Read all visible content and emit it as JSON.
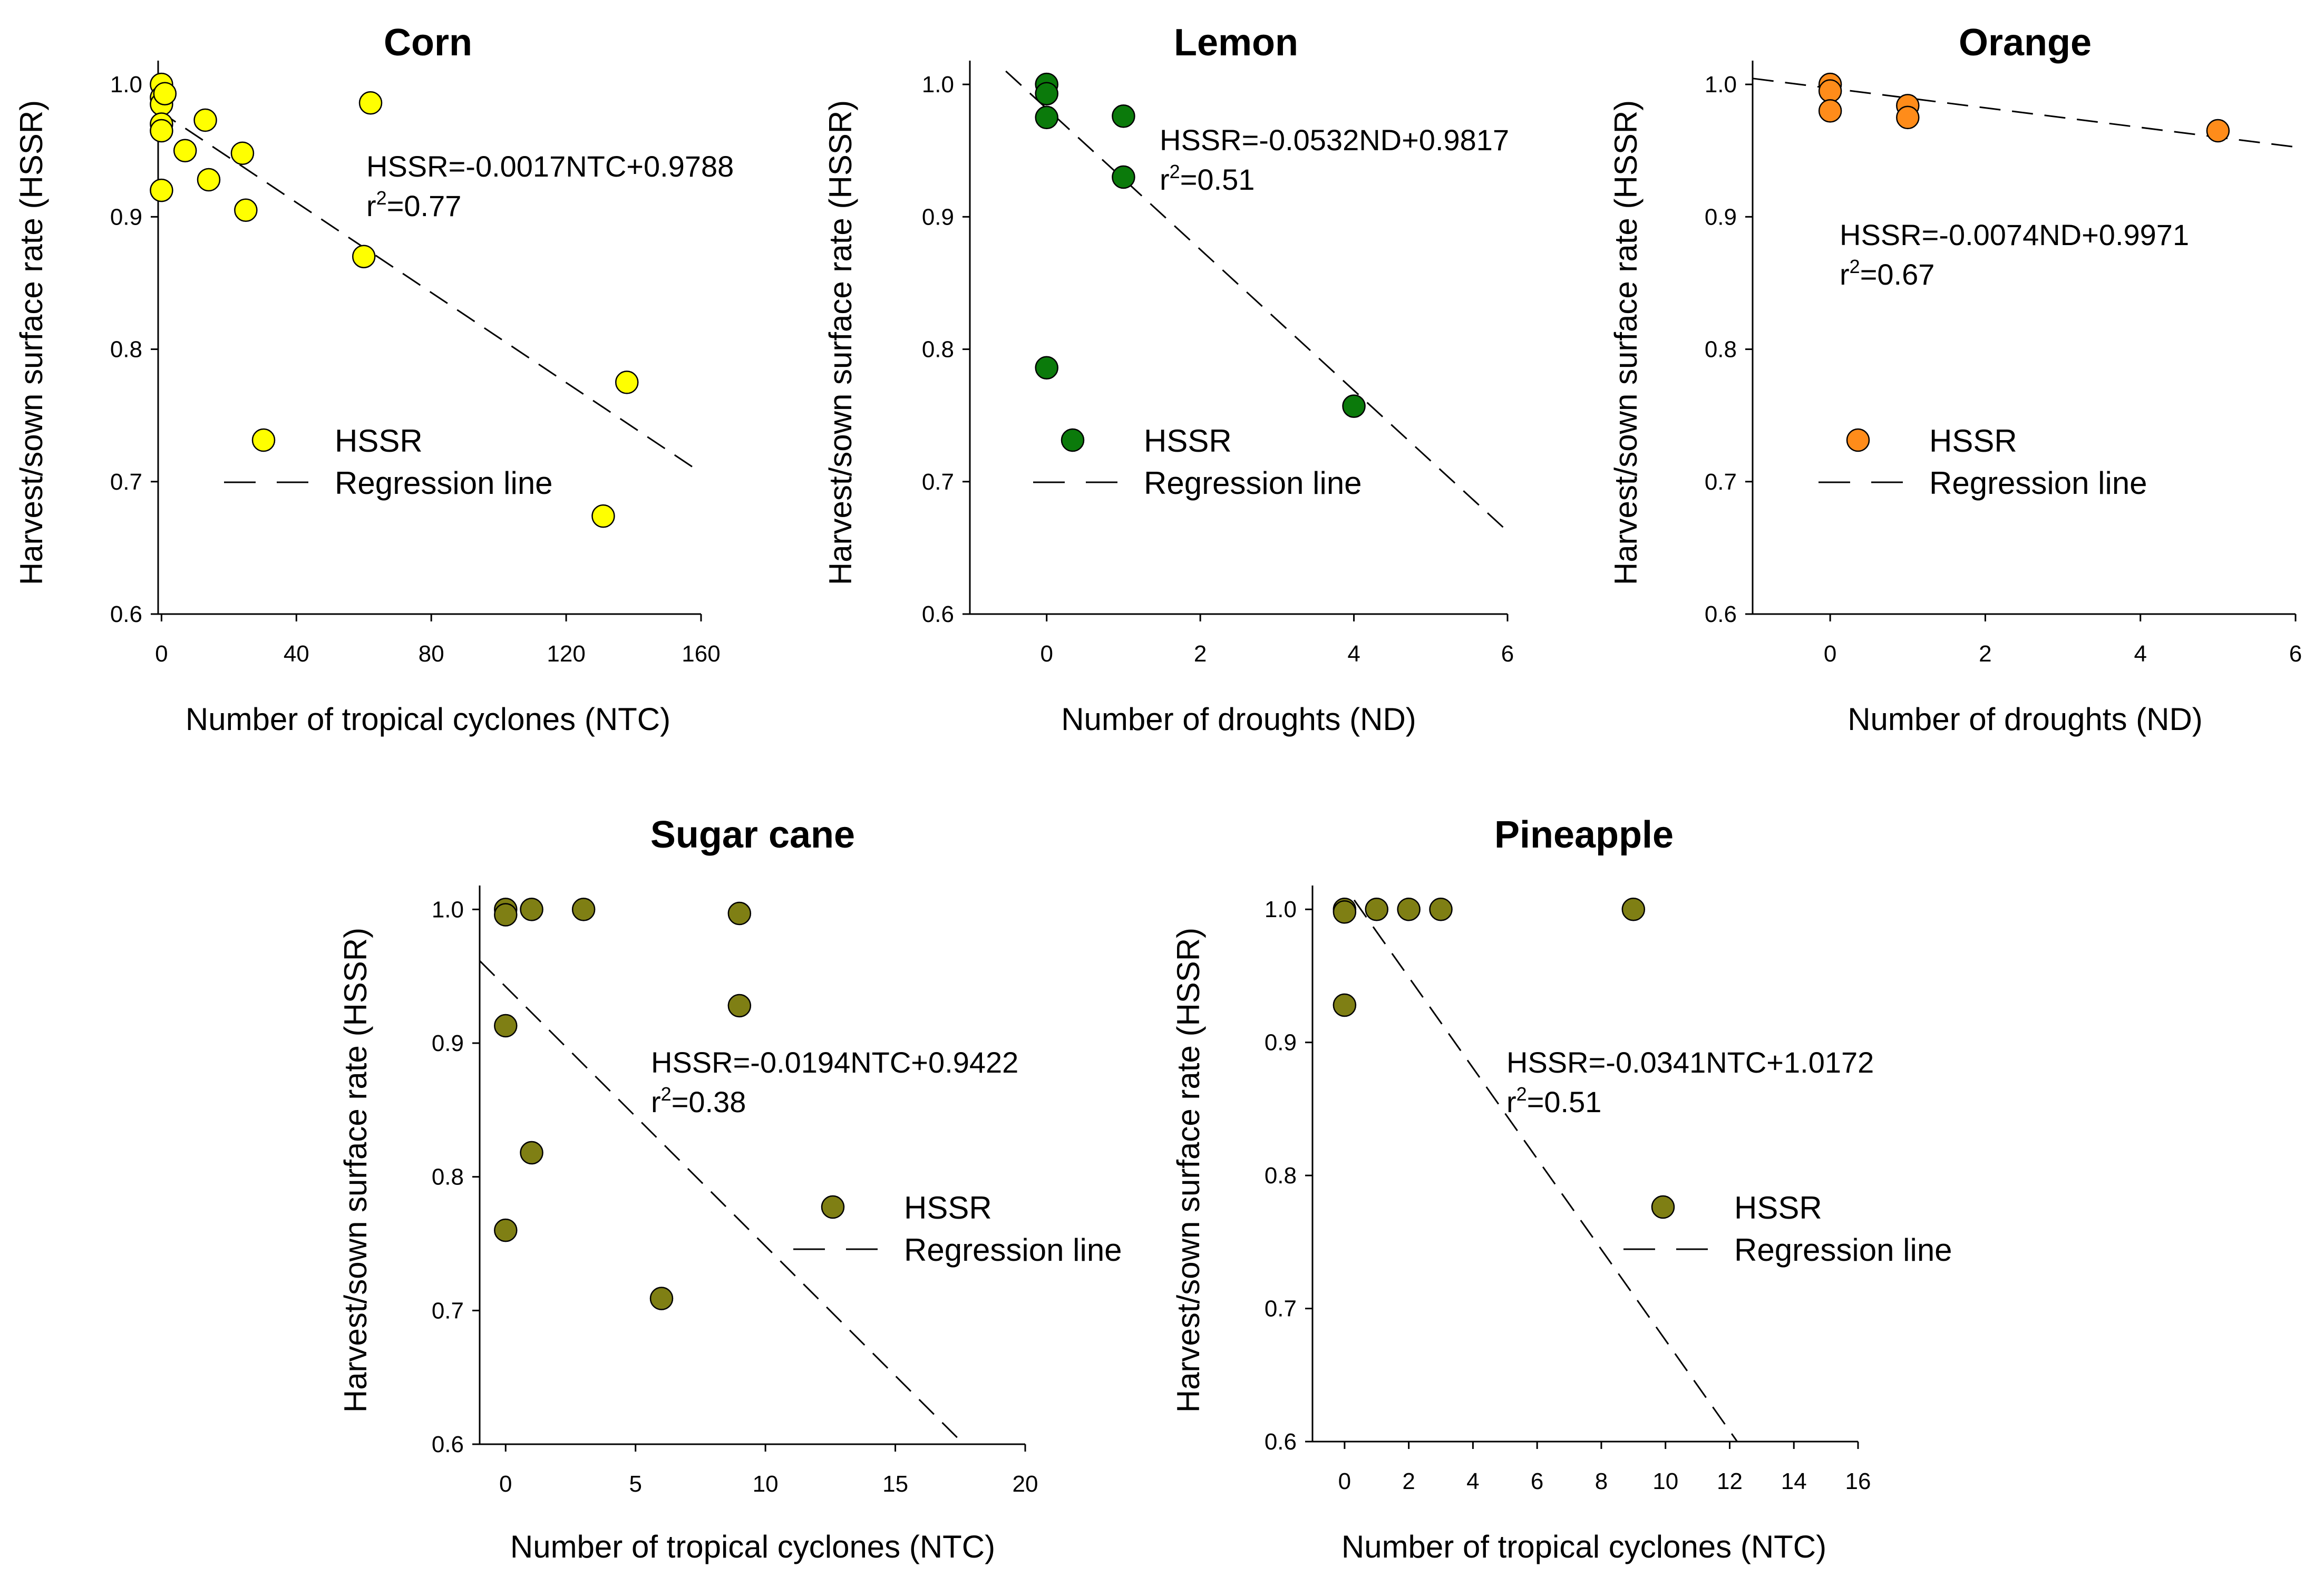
{
  "chart_data": [
    {
      "type": "scatter",
      "title": "Corn",
      "xlabel": "Number of tropical cyclones (NTC)",
      "ylabel": "Harvest/sown surface rate (HSSR)",
      "xlim": [
        -1,
        160
      ],
      "ylim": [
        0.6,
        1.01
      ],
      "xticks": [
        0,
        40,
        80,
        120,
        160
      ],
      "yticks": [
        0.6,
        0.7,
        0.8,
        0.9,
        1.0
      ],
      "color": "#ffff00",
      "points": [
        {
          "x": 0,
          "y": 1.0
        },
        {
          "x": 0,
          "y": 0.99
        },
        {
          "x": 0,
          "y": 0.985
        },
        {
          "x": 0,
          "y": 0.97
        },
        {
          "x": 0,
          "y": 0.965
        },
        {
          "x": 0,
          "y": 0.92
        },
        {
          "x": 1,
          "y": 0.993
        },
        {
          "x": 7,
          "y": 0.95
        },
        {
          "x": 13,
          "y": 0.973
        },
        {
          "x": 14,
          "y": 0.928
        },
        {
          "x": 24,
          "y": 0.948
        },
        {
          "x": 25,
          "y": 0.905
        },
        {
          "x": 60,
          "y": 0.87
        },
        {
          "x": 62,
          "y": 0.986
        },
        {
          "x": 131,
          "y": 0.674
        },
        {
          "x": 138,
          "y": 0.775
        }
      ],
      "regression": {
        "slope": -0.0017,
        "intercept": 0.9788,
        "x_from": -1,
        "x_to": 160
      },
      "equation": "HSSR=-0.0017NTC+0.9788",
      "r2_prefix": "r",
      "r2_sup": "2",
      "r2_value": "=0.77",
      "legend": {
        "points": "HSSR",
        "line": "Regression line"
      }
    },
    {
      "type": "scatter",
      "title": "Lemon",
      "xlabel": "Number of droughts (ND)",
      "ylabel": "Harvest/sown surface rate (HSSR)",
      "xlim": [
        -1,
        6
      ],
      "ylim": [
        0.6,
        1.01
      ],
      "xticks": [
        0,
        2,
        4,
        6
      ],
      "yticks": [
        0.6,
        0.7,
        0.8,
        0.9,
        1.0
      ],
      "color": "#0b7a0b",
      "points": [
        {
          "x": 0,
          "y": 1.0
        },
        {
          "x": 0,
          "y": 0.993
        },
        {
          "x": 0,
          "y": 0.975
        },
        {
          "x": 0,
          "y": 0.786
        },
        {
          "x": 1,
          "y": 0.976
        },
        {
          "x": 1,
          "y": 0.93
        },
        {
          "x": 4,
          "y": 0.757
        }
      ],
      "regression": {
        "slope": -0.0532,
        "intercept": 0.9817,
        "x_from": -0.55,
        "x_to": 6
      },
      "equation": "HSSR=-0.0532ND+0.9817",
      "r2_prefix": "r",
      "r2_sup": "2",
      "r2_value": "=0.51",
      "legend": {
        "points": "HSSR",
        "line": "Regression line"
      }
    },
    {
      "type": "scatter",
      "title": "Orange",
      "xlabel": "Number of droughts (ND)",
      "ylabel": "Harvest/sown surface rate (HSSR)",
      "xlim": [
        -1,
        6
      ],
      "ylim": [
        0.6,
        1.01
      ],
      "xticks": [
        0,
        2,
        4,
        6
      ],
      "yticks": [
        0.6,
        0.7,
        0.8,
        0.9,
        1.0
      ],
      "color": "#ff8c1a",
      "points": [
        {
          "x": 0,
          "y": 1.0
        },
        {
          "x": 0,
          "y": 0.995
        },
        {
          "x": 0,
          "y": 0.98
        },
        {
          "x": 1,
          "y": 0.984
        },
        {
          "x": 1,
          "y": 0.975
        },
        {
          "x": 5,
          "y": 0.965
        }
      ],
      "regression": {
        "slope": -0.0074,
        "intercept": 0.9971,
        "x_from": -1,
        "x_to": 6
      },
      "equation": "HSSR=-0.0074ND+0.9971",
      "r2_prefix": "r",
      "r2_sup": "2",
      "r2_value": "=0.67",
      "legend": {
        "points": "HSSR",
        "line": "Regression line"
      }
    },
    {
      "type": "scatter",
      "title": "Sugar cane",
      "xlabel": "Number of tropical cyclones (NTC)",
      "ylabel": "Harvest/sown surface rate (HSSR)",
      "xlim": [
        -1,
        20
      ],
      "ylim": [
        0.6,
        1.01
      ],
      "xticks": [
        0,
        5,
        10,
        15,
        20
      ],
      "yticks": [
        0.6,
        0.7,
        0.8,
        0.9,
        1.0
      ],
      "color": "#7f7f14",
      "points": [
        {
          "x": 0,
          "y": 1.0
        },
        {
          "x": 0,
          "y": 0.996
        },
        {
          "x": 0,
          "y": 0.913
        },
        {
          "x": 0,
          "y": 0.76
        },
        {
          "x": 1,
          "y": 1.0
        },
        {
          "x": 1,
          "y": 0.818
        },
        {
          "x": 3,
          "y": 1.0
        },
        {
          "x": 6,
          "y": 0.709
        },
        {
          "x": 9,
          "y": 0.997
        },
        {
          "x": 9,
          "y": 0.928
        }
      ],
      "regression": {
        "slope": -0.0194,
        "intercept": 0.9422,
        "x_from": -1,
        "x_to": 20
      },
      "equation": "HSSR=-0.0194NTC+0.9422",
      "r2_prefix": "r",
      "r2_sup": "2",
      "r2_value": "=0.38",
      "legend": {
        "points": "HSSR",
        "line": "Regression line"
      }
    },
    {
      "type": "scatter",
      "title": "Pineapple",
      "xlabel": "Number of tropical cyclones (NTC)",
      "ylabel": "Harvest/sown surface rate (HSSR)",
      "xlim": [
        -1,
        16
      ],
      "ylim": [
        0.6,
        1.01
      ],
      "xticks": [
        0,
        2,
        4,
        6,
        8,
        10,
        12,
        14,
        16
      ],
      "yticks": [
        0.6,
        0.7,
        0.8,
        0.9,
        1.0
      ],
      "color": "#7f7f14",
      "points": [
        {
          "x": 0,
          "y": 1.0
        },
        {
          "x": 0,
          "y": 0.998
        },
        {
          "x": 0,
          "y": 0.928
        },
        {
          "x": 1,
          "y": 1.0
        },
        {
          "x": 2,
          "y": 1.0
        },
        {
          "x": 3,
          "y": 1.0
        },
        {
          "x": 9,
          "y": 1.0
        }
      ],
      "regression": {
        "slope": -0.0341,
        "intercept": 1.0172,
        "x_from": 0.3,
        "x_to": 16
      },
      "equation": "HSSR=-0.0341NTC+1.0172",
      "r2_prefix": "r",
      "r2_sup": "2",
      "r2_value": "=0.51",
      "legend": {
        "points": "HSSR",
        "line": "Regression line"
      }
    }
  ]
}
